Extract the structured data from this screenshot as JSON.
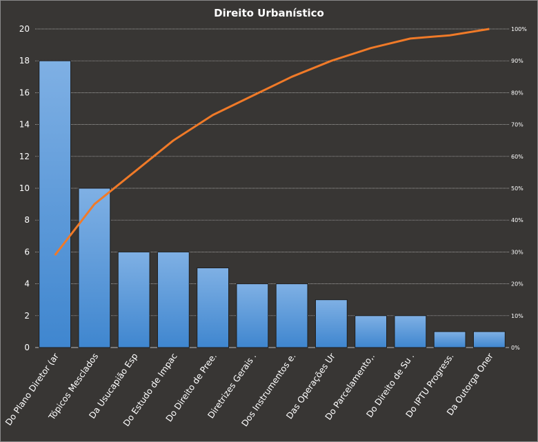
{
  "chart_data": {
    "type": "bar",
    "title": "Direito  Urbanístico",
    "categories": [
      "Do Plano Diretor (ar",
      "Tópicos Mesclados",
      "Da Usucapião Esp",
      "Do Estudo de Impac",
      "Do Direito de Pree.",
      "Diretrizes Gerais  .",
      "Dos Instrumentos  e.",
      "Das Operações Ur",
      "Do Parcelamento,.",
      "Do Direito de Su .",
      "Do IPTU Progress.",
      "Da Outorga Oner"
    ],
    "values": [
      18,
      10,
      6,
      6,
      5,
      4,
      4,
      3,
      2,
      2,
      1,
      1
    ],
    "cumulative_percent": [
      29,
      45,
      55,
      65,
      73,
      79,
      85,
      90,
      94,
      97,
      98,
      100
    ],
    "ylim": [
      0,
      20
    ],
    "yticks": [
      "0",
      "2",
      "4",
      "6",
      "8",
      "10",
      "12",
      "14",
      "16",
      "18",
      "20"
    ],
    "y2lim": [
      0,
      100
    ],
    "y2ticks": [
      "0%",
      "10%",
      "20%",
      "30%",
      "40%",
      "50%",
      "60%",
      "70%",
      "80%",
      "90%",
      "100%"
    ],
    "grid": true,
    "colors": {
      "bar": "#4a8fd4",
      "bar_top": "#7fb0e4",
      "line": "#f07a28",
      "background": "#383634"
    }
  }
}
